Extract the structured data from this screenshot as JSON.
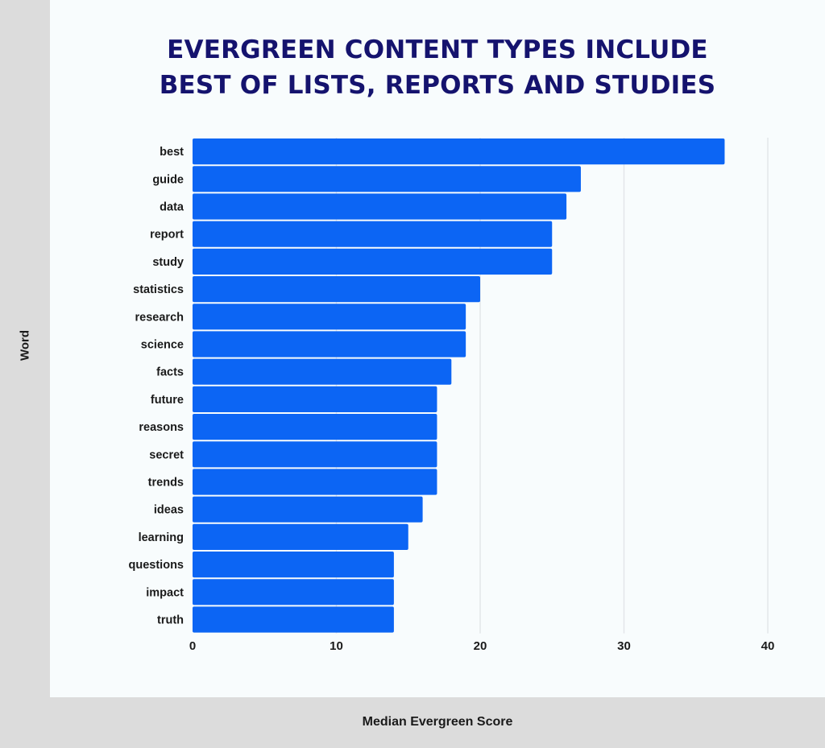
{
  "title": {
    "line1": "EVERGREEN CONTENT TYPES INCLUDE",
    "line2": "BEST OF LISTS, REPORTS AND STUDIES"
  },
  "chart_data": {
    "type": "bar",
    "orientation": "horizontal",
    "title": "EVERGREEN CONTENT TYPES INCLUDE BEST OF LISTS, REPORTS AND STUDIES",
    "xlabel": "Median Evergreen Score",
    "ylabel": "Word",
    "categories": [
      "best",
      "guide",
      "data",
      "report",
      "study",
      "statistics",
      "research",
      "science",
      "facts",
      "future",
      "reasons",
      "secret",
      "trends",
      "ideas",
      "learning",
      "questions",
      "impact",
      "truth"
    ],
    "values": [
      37,
      27,
      26,
      25,
      25,
      20,
      19,
      19,
      18,
      17,
      17,
      17,
      17,
      16,
      15,
      14,
      14,
      14
    ],
    "xlim": [
      0,
      40
    ],
    "xticks": [
      0,
      10,
      20,
      30,
      40
    ],
    "grid": "vertical",
    "bar_color": "#0c65f4",
    "legend": "none"
  }
}
